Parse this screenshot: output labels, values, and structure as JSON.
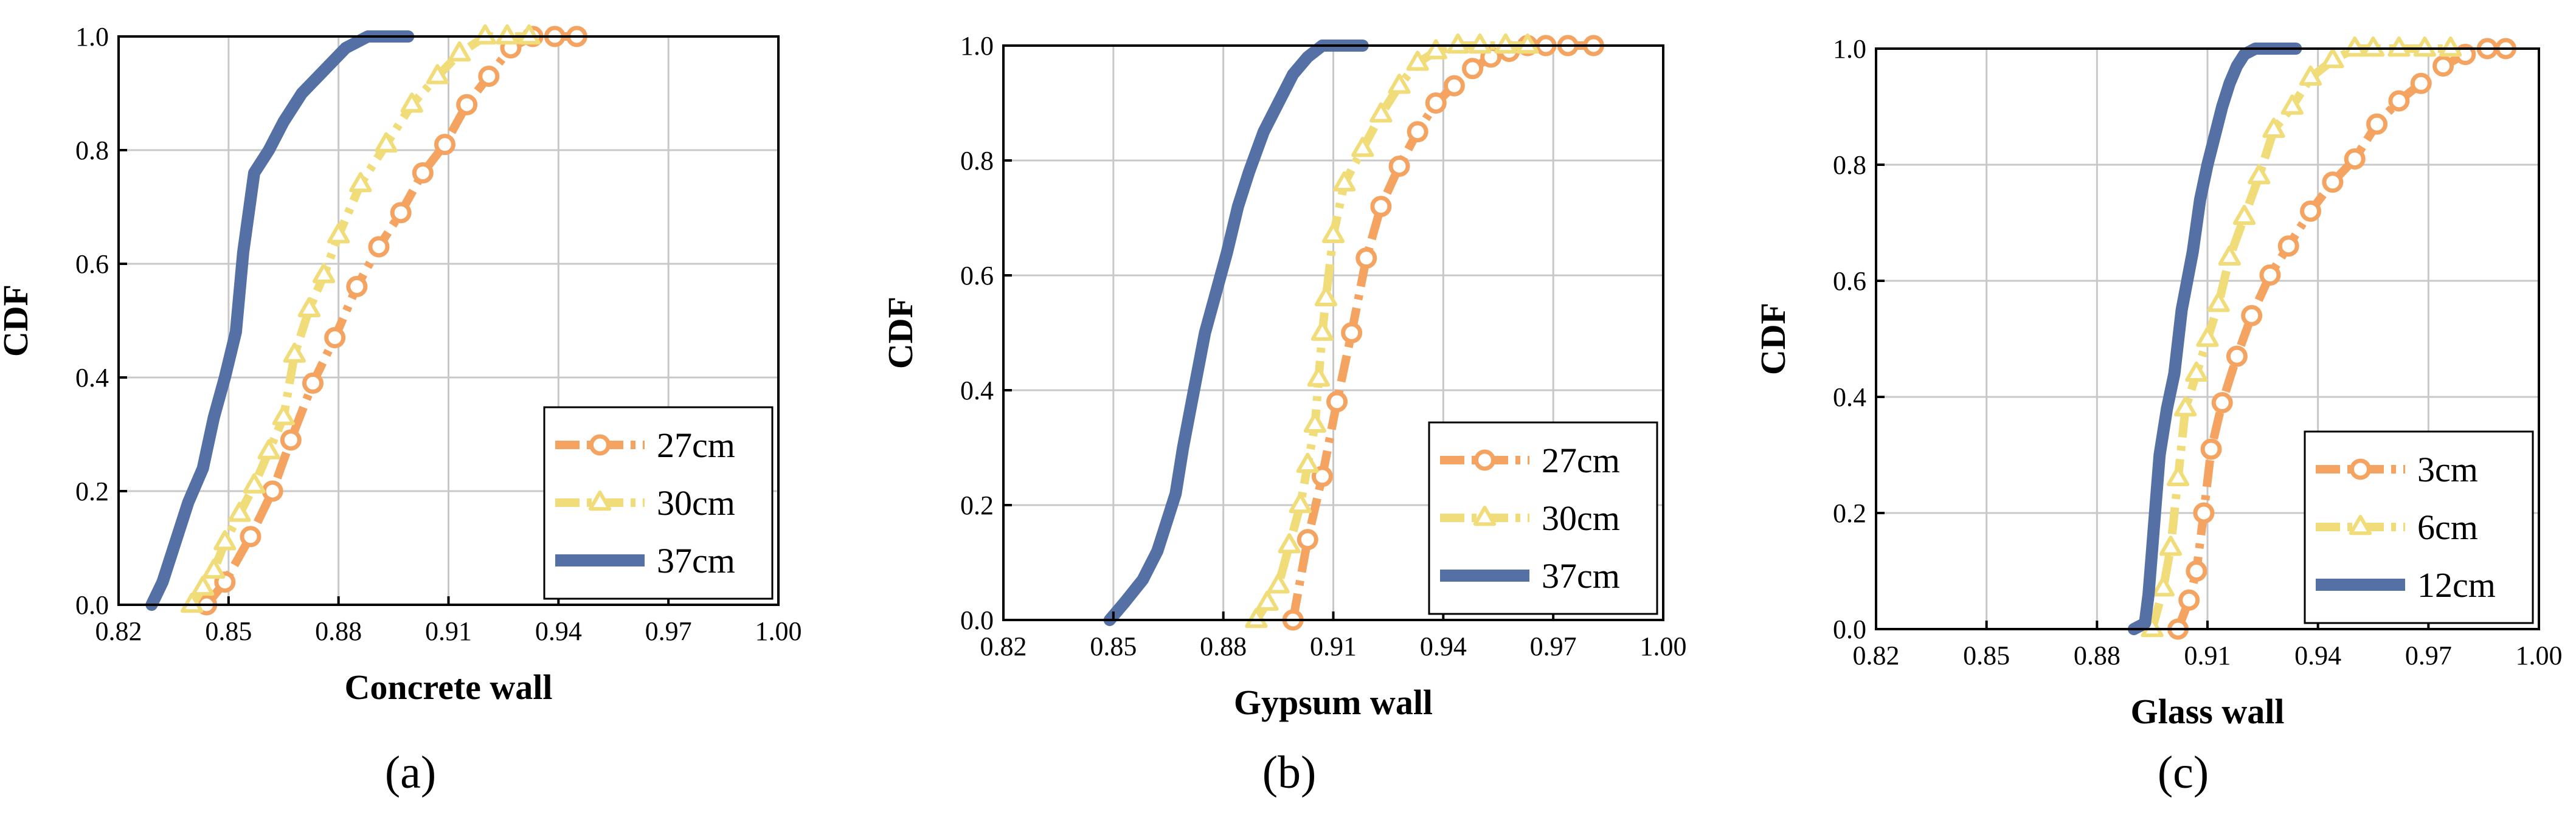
{
  "chart_data": [
    {
      "type": "line",
      "panel_label": "(a)",
      "title": "",
      "xlabel": "Concrete wall",
      "ylabel": "CDF",
      "xlim": [
        0.82,
        1.0
      ],
      "ylim": [
        0.0,
        1.0
      ],
      "xticks": [
        "0.82",
        "0.85",
        "0.88",
        "0.91",
        "0.94",
        "0.97",
        "1.00"
      ],
      "yticks": [
        "0.0",
        "0.2",
        "0.4",
        "0.6",
        "0.8",
        "1.0"
      ],
      "grid": true,
      "legend_position": "bottom-right",
      "series": [
        {
          "name": "27cm",
          "color": "#F4A460",
          "marker": "circle",
          "style": "dashdot",
          "x": [
            0.844,
            0.849,
            0.856,
            0.862,
            0.867,
            0.873,
            0.879,
            0.885,
            0.891,
            0.897,
            0.903,
            0.909,
            0.915,
            0.921,
            0.927,
            0.933,
            0.939,
            0.945
          ],
          "y": [
            0.0,
            0.04,
            0.12,
            0.2,
            0.29,
            0.39,
            0.47,
            0.56,
            0.63,
            0.69,
            0.76,
            0.81,
            0.88,
            0.93,
            0.98,
            1.0,
            1.0,
            1.0
          ]
        },
        {
          "name": "30cm",
          "color": "#F0DC78",
          "marker": "triangle",
          "style": "dashdot",
          "x": [
            0.84,
            0.843,
            0.846,
            0.849,
            0.853,
            0.857,
            0.861,
            0.865,
            0.868,
            0.872,
            0.876,
            0.88,
            0.886,
            0.893,
            0.9,
            0.907,
            0.913,
            0.92,
            0.926,
            0.932
          ],
          "y": [
            0.0,
            0.03,
            0.06,
            0.11,
            0.16,
            0.21,
            0.27,
            0.33,
            0.44,
            0.52,
            0.58,
            0.65,
            0.74,
            0.81,
            0.88,
            0.93,
            0.97,
            1.0,
            1.0,
            1.0
          ]
        },
        {
          "name": "37cm",
          "color": "#5470A5",
          "marker": "none",
          "style": "solid",
          "x": [
            0.829,
            0.832,
            0.835,
            0.839,
            0.843,
            0.846,
            0.849,
            0.852,
            0.854,
            0.857,
            0.861,
            0.865,
            0.87,
            0.876,
            0.882,
            0.888,
            0.894,
            0.899
          ],
          "y": [
            0.0,
            0.04,
            0.1,
            0.18,
            0.24,
            0.33,
            0.4,
            0.48,
            0.62,
            0.76,
            0.8,
            0.85,
            0.9,
            0.94,
            0.98,
            1.0,
            1.0,
            1.0
          ]
        }
      ]
    },
    {
      "type": "line",
      "panel_label": "(b)",
      "title": "",
      "xlabel": "Gypsum wall",
      "ylabel": "CDF",
      "xlim": [
        0.82,
        1.0
      ],
      "ylim": [
        0.0,
        1.0
      ],
      "xticks": [
        "0.82",
        "0.85",
        "0.88",
        "0.91",
        "0.94",
        "0.97",
        "1.00"
      ],
      "yticks": [
        "0.0",
        "0.2",
        "0.4",
        "0.6",
        "0.8",
        "1.0"
      ],
      "grid": true,
      "legend_position": "bottom-right",
      "series": [
        {
          "name": "27cm",
          "color": "#F4A460",
          "marker": "circle",
          "style": "dashdot",
          "x": [
            0.899,
            0.903,
            0.907,
            0.911,
            0.915,
            0.919,
            0.923,
            0.928,
            0.933,
            0.938,
            0.943,
            0.948,
            0.953,
            0.958,
            0.963,
            0.968,
            0.974,
            0.981
          ],
          "y": [
            0.0,
            0.14,
            0.25,
            0.38,
            0.5,
            0.63,
            0.72,
            0.79,
            0.85,
            0.9,
            0.93,
            0.96,
            0.98,
            0.99,
            1.0,
            1.0,
            1.0,
            1.0
          ]
        },
        {
          "name": "30cm",
          "color": "#F0DC78",
          "marker": "triangle",
          "style": "dashdot",
          "x": [
            0.889,
            0.892,
            0.895,
            0.898,
            0.901,
            0.903,
            0.905,
            0.906,
            0.907,
            0.908,
            0.91,
            0.913,
            0.918,
            0.923,
            0.928,
            0.933,
            0.938,
            0.944,
            0.95,
            0.957,
            0.963
          ],
          "y": [
            0.0,
            0.03,
            0.06,
            0.13,
            0.2,
            0.27,
            0.34,
            0.42,
            0.5,
            0.56,
            0.67,
            0.76,
            0.82,
            0.88,
            0.93,
            0.97,
            0.99,
            1.0,
            1.0,
            1.0,
            1.0
          ]
        },
        {
          "name": "37cm",
          "color": "#5470A5",
          "marker": "none",
          "style": "solid",
          "x": [
            0.849,
            0.853,
            0.858,
            0.862,
            0.865,
            0.867,
            0.869,
            0.872,
            0.875,
            0.878,
            0.881,
            0.884,
            0.887,
            0.891,
            0.895,
            0.899,
            0.903,
            0.907,
            0.912,
            0.918
          ],
          "y": [
            0.0,
            0.03,
            0.07,
            0.12,
            0.18,
            0.22,
            0.3,
            0.4,
            0.5,
            0.57,
            0.64,
            0.72,
            0.78,
            0.85,
            0.9,
            0.95,
            0.98,
            1.0,
            1.0,
            1.0
          ]
        }
      ]
    },
    {
      "type": "line",
      "panel_label": "(c)",
      "title": "",
      "xlabel": "Glass wall",
      "ylabel": "CDF",
      "xlim": [
        0.82,
        1.0
      ],
      "ylim": [
        0.0,
        1.0
      ],
      "xticks": [
        "0.82",
        "0.85",
        "0.88",
        "0.91",
        "0.94",
        "0.97",
        "1.00"
      ],
      "yticks": [
        "0.0",
        "0.2",
        "0.4",
        "0.6",
        "0.8",
        "1.0"
      ],
      "grid": true,
      "legend_position": "bottom-right",
      "series": [
        {
          "name": "3cm",
          "color": "#F4A460",
          "marker": "circle",
          "style": "dashdot",
          "x": [
            0.902,
            0.905,
            0.907,
            0.909,
            0.911,
            0.914,
            0.918,
            0.922,
            0.927,
            0.932,
            0.938,
            0.944,
            0.95,
            0.956,
            0.962,
            0.968,
            0.974,
            0.98,
            0.986,
            0.991
          ],
          "y": [
            0.0,
            0.05,
            0.1,
            0.2,
            0.31,
            0.39,
            0.47,
            0.54,
            0.61,
            0.66,
            0.72,
            0.77,
            0.81,
            0.87,
            0.91,
            0.94,
            0.97,
            0.99,
            1.0,
            1.0
          ]
        },
        {
          "name": "6cm",
          "color": "#F0DC78",
          "marker": "triangle",
          "style": "dashdot",
          "x": [
            0.895,
            0.898,
            0.9,
            0.902,
            0.904,
            0.907,
            0.91,
            0.913,
            0.916,
            0.92,
            0.924,
            0.928,
            0.933,
            0.938,
            0.944,
            0.95,
            0.955,
            0.962,
            0.969,
            0.976
          ],
          "y": [
            0.0,
            0.07,
            0.14,
            0.26,
            0.38,
            0.44,
            0.5,
            0.56,
            0.64,
            0.71,
            0.78,
            0.86,
            0.9,
            0.95,
            0.98,
            1.0,
            1.0,
            1.0,
            1.0,
            1.0
          ]
        },
        {
          "name": "12cm",
          "color": "#5470A5",
          "marker": "none",
          "style": "solid",
          "x": [
            0.89,
            0.893,
            0.894,
            0.895,
            0.896,
            0.897,
            0.899,
            0.901,
            0.903,
            0.906,
            0.908,
            0.91,
            0.912,
            0.914,
            0.916,
            0.918,
            0.92,
            0.923,
            0.926,
            0.929,
            0.934
          ],
          "y": [
            0.0,
            0.01,
            0.06,
            0.14,
            0.22,
            0.3,
            0.38,
            0.44,
            0.55,
            0.65,
            0.74,
            0.8,
            0.85,
            0.9,
            0.94,
            0.97,
            0.99,
            1.0,
            1.0,
            1.0,
            1.0
          ]
        }
      ]
    }
  ]
}
